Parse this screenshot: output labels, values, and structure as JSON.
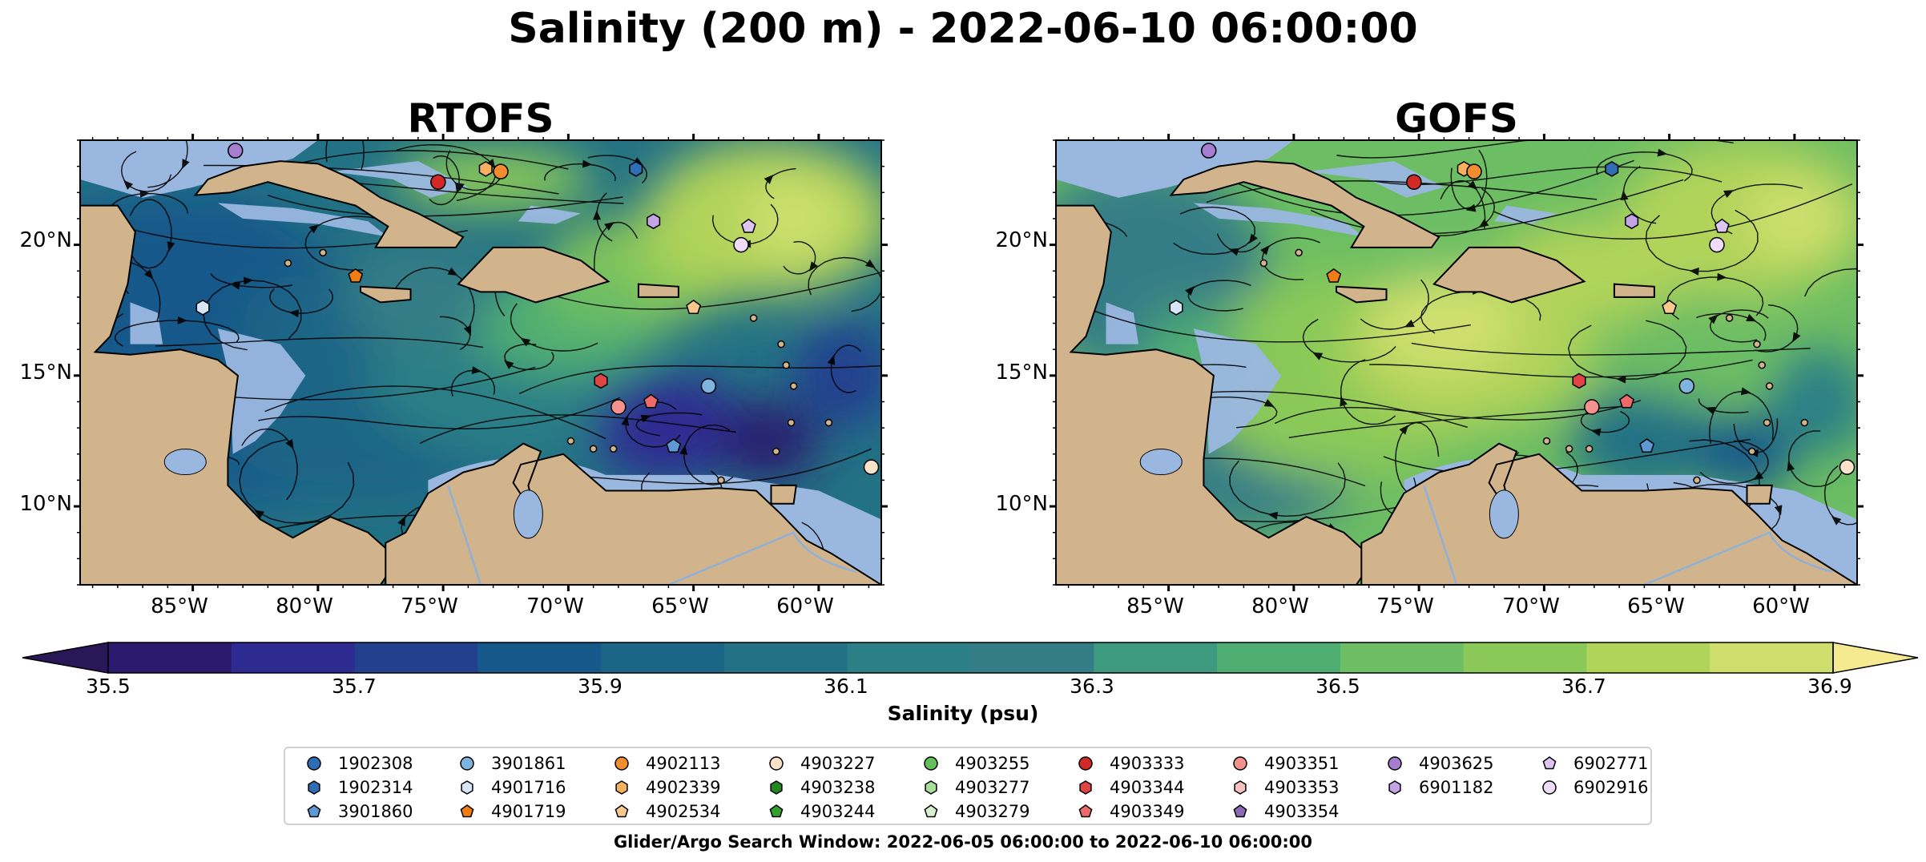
{
  "title": "Salinity (200 m) - 2022-06-10 06:00:00",
  "panels": [
    {
      "title": "RTOFS"
    },
    {
      "title": "GOFS"
    }
  ],
  "map": {
    "lon_range": [
      -89.5,
      -57.5
    ],
    "lat_range": [
      7,
      24
    ],
    "lon_ticks": [
      {
        "lon": -85,
        "label": "85°W"
      },
      {
        "lon": -80,
        "label": "80°W"
      },
      {
        "lon": -75,
        "label": "75°W"
      },
      {
        "lon": -70,
        "label": "70°W"
      },
      {
        "lon": -65,
        "label": "65°W"
      },
      {
        "lon": -60,
        "label": "60°W"
      }
    ],
    "lat_ticks": [
      {
        "lat": 20,
        "label": "20°N"
      },
      {
        "lat": 15,
        "label": "15°N"
      },
      {
        "lat": 10,
        "label": "10°N"
      }
    ],
    "colors": {
      "land": "#d2b48c",
      "shallow_water": "#9ab7e0",
      "coast": "#000000"
    }
  },
  "colorbar": {
    "label": "Salinity (psu)",
    "tick_labels": [
      "35.5",
      "35.7",
      "35.9",
      "36.1",
      "36.3",
      "36.5",
      "36.7",
      "36.9"
    ],
    "range": [
      35.5,
      36.9
    ],
    "step": 0.1,
    "colors": [
      "#2a1b6e",
      "#2d2a91",
      "#23408f",
      "#16588a",
      "#1b6586",
      "#237184",
      "#2b7f86",
      "#347d86",
      "#3e9a7e",
      "#4fae72",
      "#6cbd63",
      "#8ac958",
      "#b0d35a",
      "#cfdf6e"
    ],
    "extend_low_color": "#2a1758",
    "extend_high_color": "#f6ea90"
  },
  "legend": {
    "columns": [
      [
        {
          "id": "1902308",
          "color": "#2f6db5",
          "marker": "circle"
        },
        {
          "id": "1902314",
          "color": "#2f6db5",
          "marker": "hexagon"
        },
        {
          "id": "3901860",
          "color": "#5d9ad3",
          "marker": "pentagon"
        }
      ],
      [
        {
          "id": "3901861",
          "color": "#7fb3e0",
          "marker": "circle"
        },
        {
          "id": "4901716",
          "color": "#d6e6f6",
          "marker": "hexagon"
        },
        {
          "id": "4901719",
          "color": "#f07d12",
          "marker": "pentagon"
        }
      ],
      [
        {
          "id": "4902113",
          "color": "#f28c2e",
          "marker": "circle"
        },
        {
          "id": "4902339",
          "color": "#f7b060",
          "marker": "hexagon"
        },
        {
          "id": "4902534",
          "color": "#f9c88e",
          "marker": "pentagon"
        }
      ],
      [
        {
          "id": "4903227",
          "color": "#fbe2c8",
          "marker": "circle"
        },
        {
          "id": "4903238",
          "color": "#21871f",
          "marker": "hexagon"
        },
        {
          "id": "4903244",
          "color": "#33a02c",
          "marker": "pentagon"
        }
      ],
      [
        {
          "id": "4903255",
          "color": "#62bf5a",
          "marker": "circle"
        },
        {
          "id": "4903277",
          "color": "#a8df98",
          "marker": "hexagon"
        },
        {
          "id": "4903279",
          "color": "#d8f2cf",
          "marker": "pentagon"
        }
      ],
      [
        {
          "id": "4903333",
          "color": "#d12a26",
          "marker": "circle"
        },
        {
          "id": "4903344",
          "color": "#e04545",
          "marker": "hexagon"
        },
        {
          "id": "4903349",
          "color": "#ec6a6a",
          "marker": "pentagon"
        }
      ],
      [
        {
          "id": "4903351",
          "color": "#f3918c",
          "marker": "circle"
        },
        {
          "id": "4903353",
          "color": "#f8c1bb",
          "marker": "hexagon"
        },
        {
          "id": "4903354",
          "color": "#8c6ab6",
          "marker": "pentagon"
        }
      ],
      [
        {
          "id": "4903625",
          "color": "#a77dd1",
          "marker": "circle"
        },
        {
          "id": "6901182",
          "color": "#c3a4e4",
          "marker": "hexagon"
        }
      ],
      [
        {
          "id": "6902771",
          "color": "#dcc6f1",
          "marker": "pentagon"
        },
        {
          "id": "6902916",
          "color": "#eedcf8",
          "marker": "circle"
        }
      ]
    ]
  },
  "search_window": "Glider/Argo Search Window: 2022-06-05 06:00:00 to 2022-06-10 06:00:00",
  "floats_on_map": [
    {
      "id": "4903625",
      "lon": -83.3,
      "lat": 23.6
    },
    {
      "id": "4903333",
      "lon": -75.2,
      "lat": 22.4
    },
    {
      "id": "4902339",
      "lon": -73.3,
      "lat": 22.9
    },
    {
      "id": "4902113",
      "lon": -72.7,
      "lat": 22.8
    },
    {
      "id": "1902314",
      "lon": -67.3,
      "lat": 22.9
    },
    {
      "id": "6901182",
      "lon": -66.6,
      "lat": 20.9
    },
    {
      "id": "6902771",
      "lon": -62.8,
      "lat": 20.7
    },
    {
      "id": "6902916",
      "lon": -63.1,
      "lat": 20.0
    },
    {
      "id": "4901719",
      "lon": -78.5,
      "lat": 18.8
    },
    {
      "id": "4901716",
      "lon": -84.6,
      "lat": 17.6
    },
    {
      "id": "4902534",
      "lon": -65.0,
      "lat": 17.6
    },
    {
      "id": "4903344",
      "lon": -68.7,
      "lat": 14.8
    },
    {
      "id": "4903351",
      "lon": -68.0,
      "lat": 13.8
    },
    {
      "id": "4903349",
      "lon": -66.7,
      "lat": 14.0
    },
    {
      "id": "3901861",
      "lon": -64.4,
      "lat": 14.6
    },
    {
      "id": "3901860",
      "lon": -65.8,
      "lat": 12.3
    },
    {
      "id": "4903227",
      "lon": -57.9,
      "lat": 11.5
    }
  ]
}
